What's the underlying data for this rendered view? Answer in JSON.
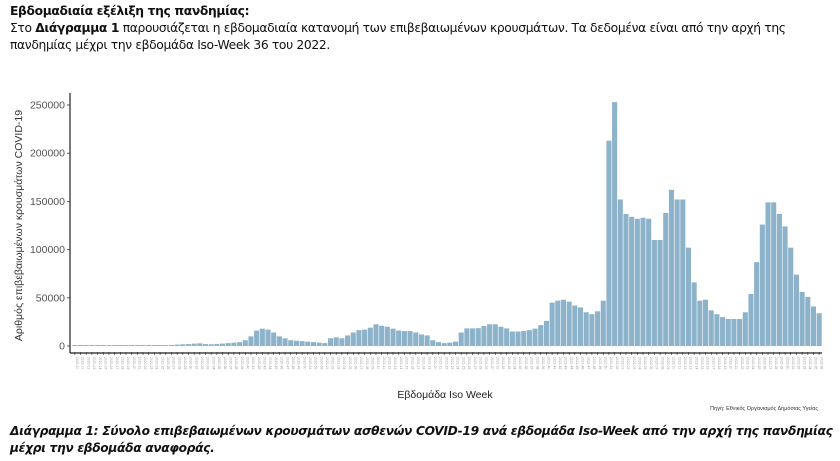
{
  "intro": {
    "heading": "Εβδομαδιαία εξέλιξη της πανδημίας:",
    "text_pre": "Στο ",
    "text_bold": "Διάγραμμα 1",
    "text_post": " παρουσιάζεται η εβδομαδιαία κατανομή των επιβεβαιωμένων κρουσμάτων. Τα δεδομένα είναι από την αρχή της πανδημίας μέχρι την εβδομάδα Iso-Week 36 του 2022."
  },
  "caption": "Διάγραμμα 1: Σύνολο επιβεβαιωμένων κρουσμάτων ασθενών COVID-19 ανά εβδομάδα Iso-Week από την αρχή της πανδημίας μέχρι την εβδομάδα αναφοράς.",
  "colors": {
    "bar": "#8db3cb"
  },
  "chart_data": {
    "type": "bar",
    "title": "",
    "xlabel": "Εβδομάδα Iso Week",
    "ylabel": "Αριθμός επιβεβαιωμένων κρουσμάτων COVID-19",
    "source": "Πηγή: Εθνικός Οργανισμός Δημόσιας Υγείας",
    "ylim": [
      0,
      260000
    ],
    "yticks": [
      0,
      50000,
      100000,
      150000,
      200000,
      250000
    ],
    "grid": false,
    "category_range": [
      "2020-10",
      "2022-36"
    ],
    "values": [
      0,
      100,
      500,
      1000,
      800,
      500,
      300,
      200,
      100,
      100,
      150,
      200,
      300,
      400,
      500,
      600,
      800,
      1000,
      1500,
      1800,
      2000,
      2500,
      2800,
      2000,
      1800,
      2200,
      2500,
      3000,
      3500,
      4000,
      6000,
      10000,
      16000,
      18000,
      17000,
      14000,
      10000,
      8000,
      6000,
      5500,
      5000,
      4500,
      4000,
      3500,
      3000,
      8000,
      9000,
      8000,
      11000,
      14000,
      16500,
      17000,
      19000,
      22500,
      21000,
      20000,
      18000,
      16000,
      15500,
      15500,
      14000,
      12000,
      11000,
      6000,
      4000,
      3000,
      3500,
      4500,
      14000,
      18300,
      18300,
      18500,
      20700,
      22500,
      22500,
      20000,
      18300,
      15000,
      15000,
      15500,
      16500,
      18000,
      21700,
      26000,
      45000,
      47000,
      48000,
      46000,
      42000,
      40000,
      35000,
      33000,
      36000,
      47000,
      213000,
      253000,
      152000,
      137000,
      134000,
      132000,
      133000,
      132000,
      110000,
      110000,
      138000,
      162000,
      152000,
      152000,
      102000,
      66000,
      47000,
      48000,
      37000,
      33000,
      30000,
      28000,
      28000,
      28000,
      35000,
      54000,
      87000,
      126000,
      149000,
      149000,
      137000,
      124000,
      102000,
      74000,
      56000,
      51000,
      41000,
      34000
    ]
  }
}
